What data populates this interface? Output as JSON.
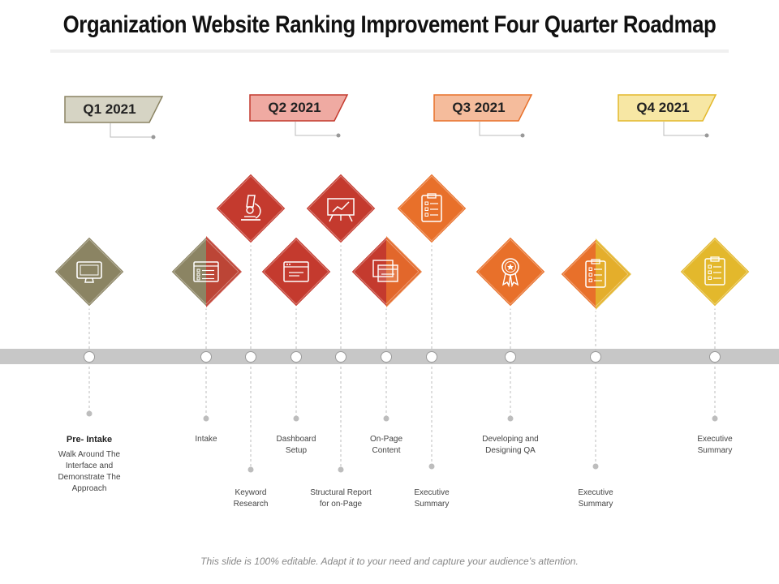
{
  "title": "Organization Website Ranking Improvement Four Quarter Roadmap",
  "footer": "This slide is 100% editable. Adapt it to your need and capture your audience’s attention.",
  "colors": {
    "q1": "#8b8463",
    "q2": "#c43a2e",
    "q3": "#e8702a",
    "q4": "#e3b82c",
    "tag_q1": "#d6d4c4",
    "tag_q2": "#efaaa2",
    "tag_q3": "#f5bc9c",
    "tag_q4": "#f7e7a4",
    "timeline": "#c7c7c7"
  },
  "quarters": [
    {
      "label": "Q1 2021"
    },
    {
      "label": "Q2 2021"
    },
    {
      "label": "Q3 2021"
    },
    {
      "label": "Q4 2021"
    }
  ],
  "milestones": [
    {
      "title": "Pre- Intake",
      "text": "Walk Around The\nInterface and\nDemonstrate The\nApproach",
      "icon": "monitor-icon"
    },
    {
      "title": "",
      "text": "Intake",
      "icon": "checklist-window-icon"
    },
    {
      "title": "",
      "text": "Keyword\nResearch",
      "icon": "microscope-icon"
    },
    {
      "title": "",
      "text": "Dashboard\nSetup",
      "icon": "browser-window-icon"
    },
    {
      "title": "",
      "text": "Structural Report\nfor on-Page",
      "icon": "presentation-chart-icon"
    },
    {
      "title": "",
      "text": "On-Page\nContent",
      "icon": "stacked-windows-icon"
    },
    {
      "title": "",
      "text": "Executive\nSummary",
      "icon": "clipboard-icon"
    },
    {
      "title": "",
      "text": "Developing and\nDesigning QA",
      "icon": "award-badge-icon"
    },
    {
      "title": "",
      "text": "Executive\nSummary",
      "icon": "clipboard-icon"
    },
    {
      "title": "",
      "text": "Executive\nSummary",
      "icon": "clipboard-icon"
    }
  ]
}
